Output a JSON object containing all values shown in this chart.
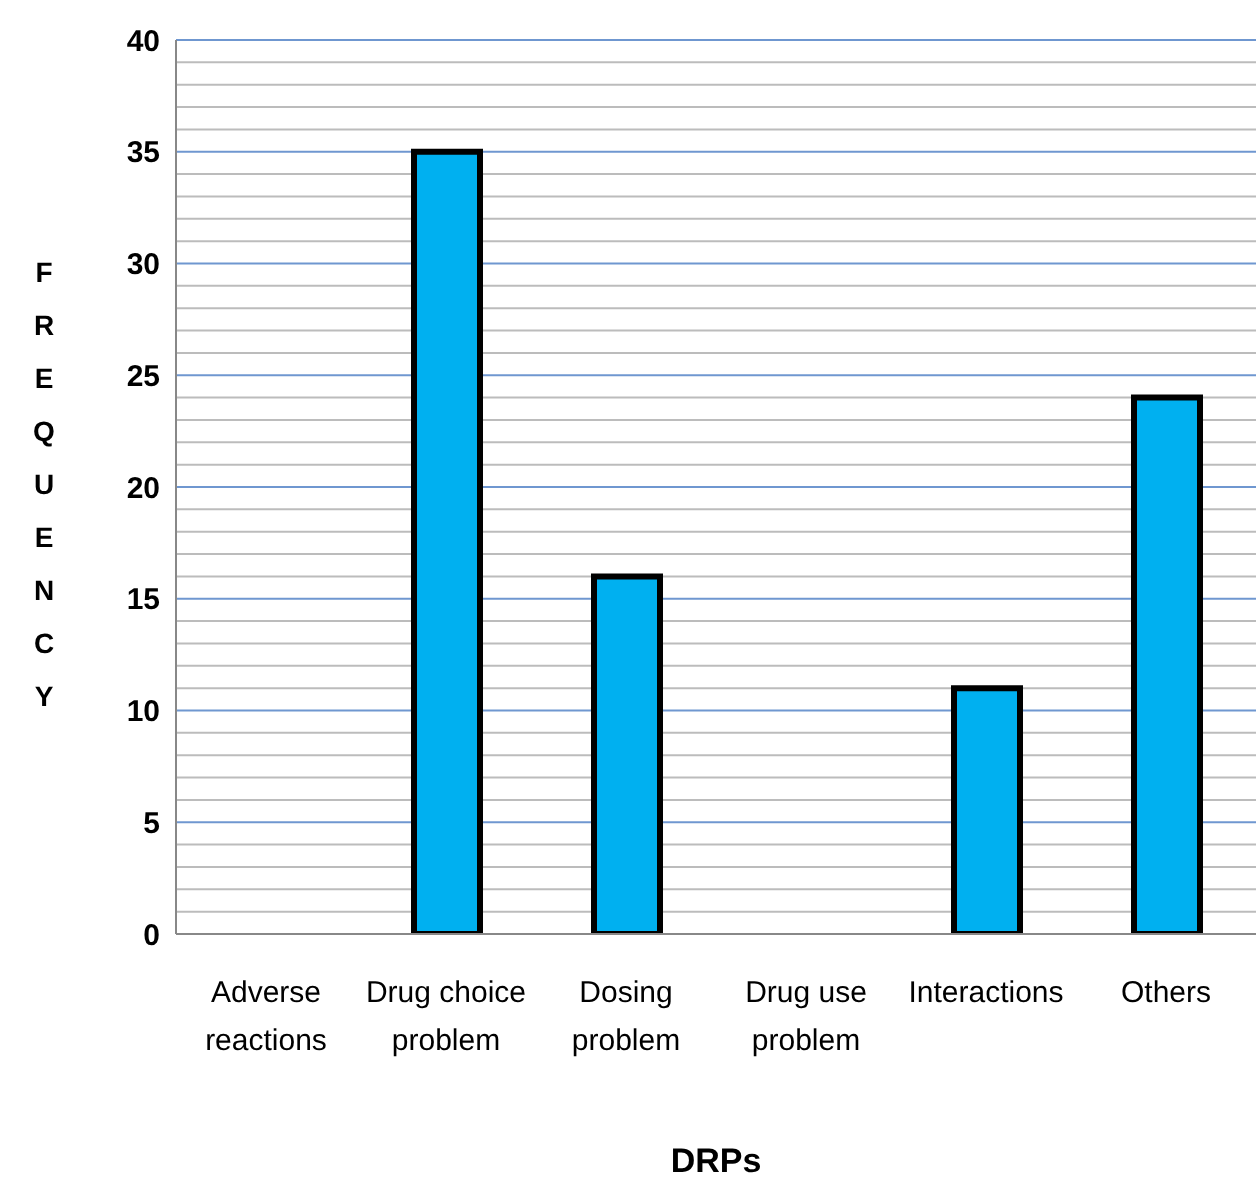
{
  "chart_data": {
    "type": "bar",
    "xlabel": "DRPs",
    "ylabel": "FREQUENCY",
    "categories": [
      "Adverse reactions",
      "Drug choice problem",
      "Dosing problem",
      "Drug use problem",
      "Interactions",
      "Others"
    ],
    "values": [
      0,
      35,
      16,
      0,
      11,
      24
    ],
    "color": "#00b0f0",
    "ylim": [
      0,
      40
    ],
    "yticks": [
      0,
      {
        "value": 1,
        "label": null
      },
      {
        "value": 2,
        "label": null
      },
      {
        "value": 3,
        "label": null
      },
      {
        "value": 4,
        "label": null
      },
      5,
      {
        "value": 6,
        "label": null
      },
      {
        "value": 7,
        "label": null
      },
      {
        "value": 8,
        "label": null
      },
      {
        "value": 9,
        "label": null
      },
      10,
      {
        "value": 11,
        "label": null
      },
      {
        "value": 12,
        "label": null
      },
      {
        "value": 13,
        "label": null
      },
      {
        "value": 14,
        "label": null
      },
      15,
      {
        "value": 16,
        "label": null
      },
      {
        "value": 17,
        "label": null
      },
      {
        "value": 18,
        "label": null
      },
      {
        "value": 19,
        "label": null
      },
      20,
      {
        "value": 21,
        "label": null
      },
      {
        "value": 22,
        "label": null
      },
      {
        "value": 23,
        "label": null
      },
      {
        "value": 24,
        "label": null
      },
      25,
      {
        "value": 26,
        "label": null
      },
      {
        "value": 27,
        "label": null
      },
      {
        "value": 28,
        "label": null
      },
      {
        "value": 29,
        "label": null
      },
      30,
      {
        "value": 31,
        "label": null
      },
      {
        "value": 32,
        "label": null
      },
      {
        "value": 33,
        "label": null
      },
      {
        "value": 34,
        "label": null
      },
      35,
      {
        "value": 36,
        "label": null
      },
      {
        "value": 37,
        "label": null
      },
      {
        "value": 38,
        "label": null
      },
      {
        "value": 39,
        "label": null
      },
      40
    ],
    "grid": "y"
  }
}
